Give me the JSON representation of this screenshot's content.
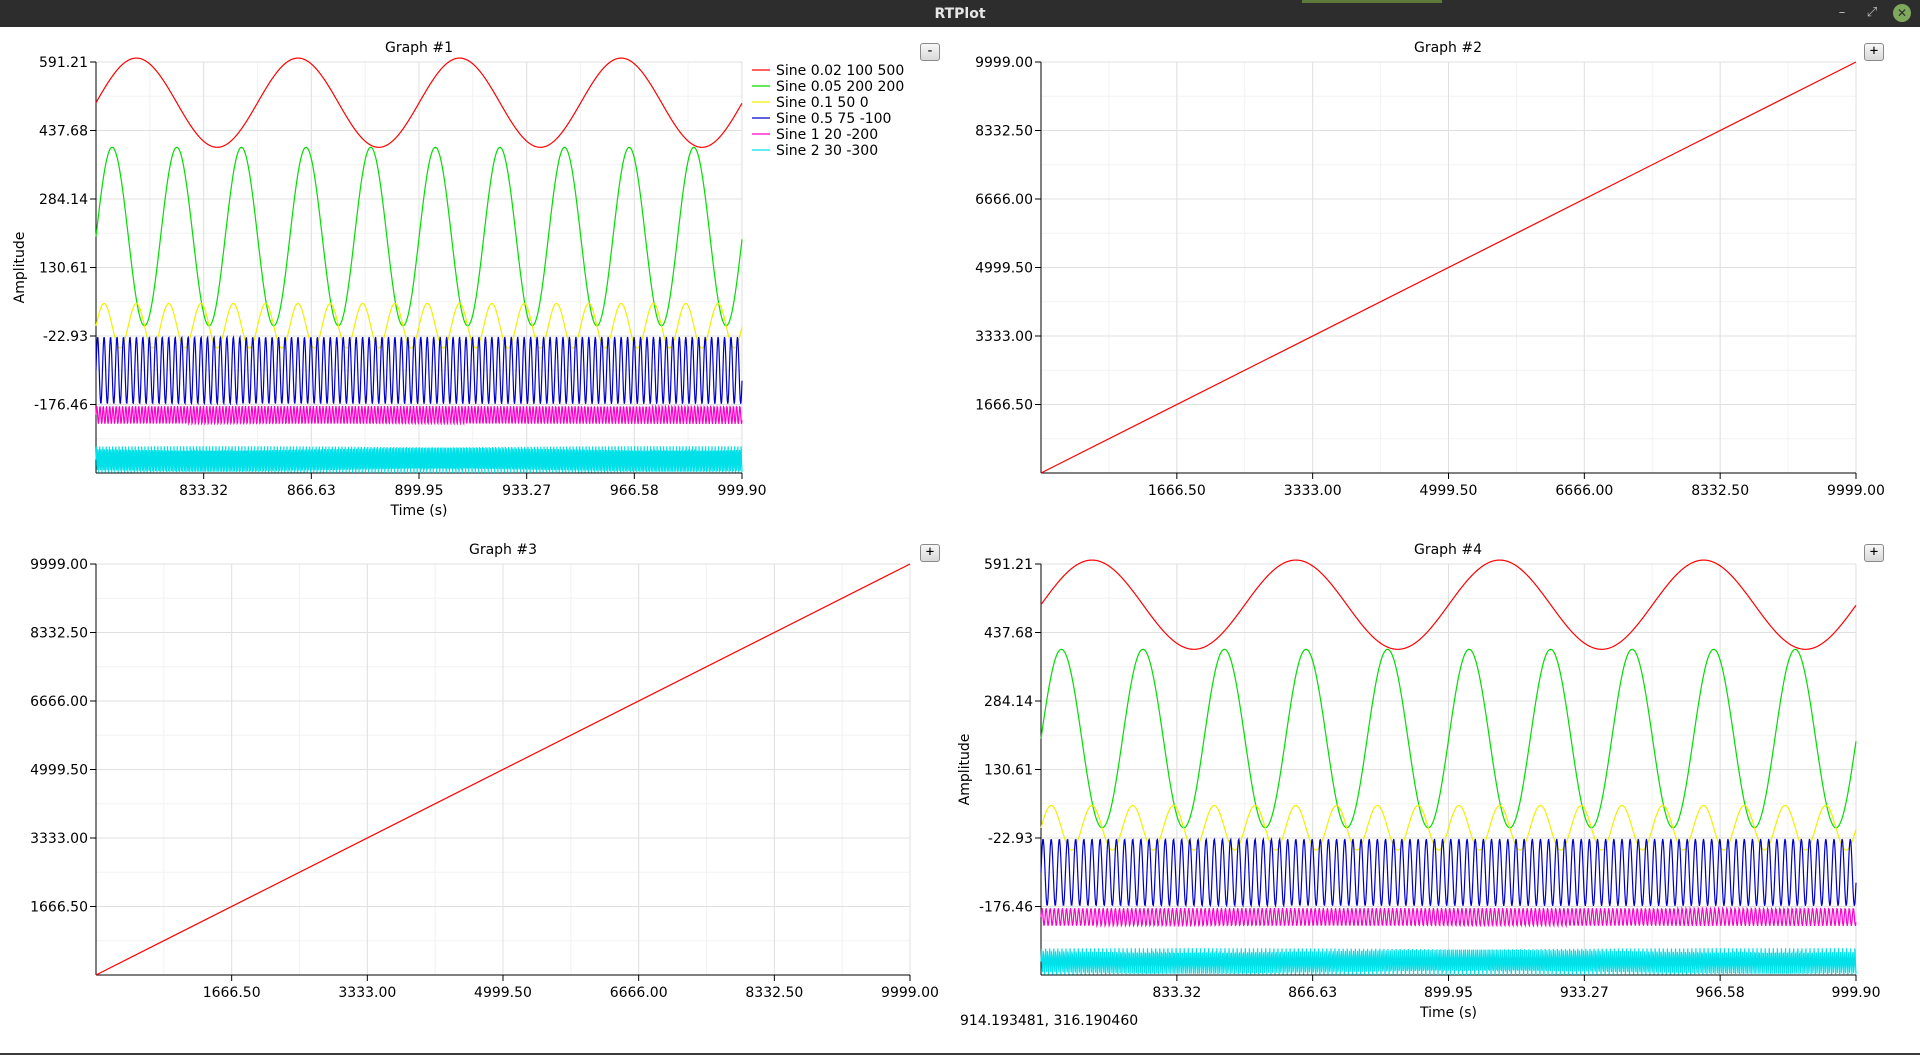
{
  "window": {
    "title": "RTPlot",
    "minimize_glyph": "–",
    "maximize_glyph": "⤢",
    "close_glyph": "✕"
  },
  "status": {
    "coords": "914.193481, 316.190460"
  },
  "colors": {
    "red": "#ff0000",
    "green": "#00dd00",
    "yellow": "#f0f000",
    "blue": "#0000cc",
    "magenta": "#ff00cc",
    "cyan": "#00e0e8"
  },
  "graphs": [
    {
      "title": "Graph #1",
      "toggle": "-",
      "xlabel": "Time (s)",
      "ylabel": "Amplitude"
    },
    {
      "title": "Graph #2",
      "toggle": "+",
      "xlabel": "",
      "ylabel": ""
    },
    {
      "title": "Graph #3",
      "toggle": "+",
      "xlabel": "",
      "ylabel": ""
    },
    {
      "title": "Graph #4",
      "toggle": "+",
      "xlabel": "Time (s)",
      "ylabel": "Amplitude"
    }
  ],
  "chart_data": [
    {
      "type": "line",
      "title": "Graph #1",
      "xlabel": "Time (s)",
      "ylabel": "Amplitude",
      "xlim": [
        800.0,
        999.9
      ],
      "ylim": [
        -329.99,
        591.21
      ],
      "xticks": [
        "833.32",
        "866.63",
        "899.95",
        "933.27",
        "966.58",
        "999.90"
      ],
      "yticks": [
        "591.21",
        "437.68",
        "284.14",
        "130.61",
        "-22.93",
        "-176.46"
      ],
      "grid": true,
      "legend_position": "top-right",
      "series": [
        {
          "name": "Sine 0.02 100 500",
          "color": "red",
          "frequency": 0.02,
          "amplitude": 100,
          "offset": 500
        },
        {
          "name": "Sine 0.05 200 200",
          "color": "green",
          "frequency": 0.05,
          "amplitude": 200,
          "offset": 200
        },
        {
          "name": "Sine 0.1 50 0",
          "color": "yellow",
          "frequency": 0.1,
          "amplitude": 50,
          "offset": 0
        },
        {
          "name": "Sine 0.5 75 -100",
          "color": "blue",
          "frequency": 0.5,
          "amplitude": 75,
          "offset": -100
        },
        {
          "name": "Sine 1 20 -200",
          "color": "magenta",
          "frequency": 1,
          "amplitude": 20,
          "offset": -200
        },
        {
          "name": "Sine 2 30 -300",
          "color": "cyan",
          "frequency": 2,
          "amplitude": 30,
          "offset": -300
        }
      ]
    },
    {
      "type": "line",
      "title": "Graph #2",
      "xlim": [
        0,
        9999.0
      ],
      "ylim": [
        0,
        9999.0
      ],
      "xticks": [
        "1666.50",
        "3333.00",
        "4999.50",
        "6666.00",
        "8332.50",
        "9999.00"
      ],
      "yticks": [
        "9999.00",
        "8332.50",
        "6666.00",
        "4999.50",
        "3333.00",
        "1666.50"
      ],
      "grid": true,
      "series": [
        {
          "color": "red",
          "x": [
            0,
            9999.0
          ],
          "y": [
            0,
            9999.0
          ]
        }
      ]
    },
    {
      "type": "line",
      "title": "Graph #3",
      "xlim": [
        0,
        9999.0
      ],
      "ylim": [
        0,
        9999.0
      ],
      "xticks": [
        "1666.50",
        "3333.00",
        "4999.50",
        "6666.00",
        "8332.50",
        "9999.00"
      ],
      "yticks": [
        "9999.00",
        "8332.50",
        "6666.00",
        "4999.50",
        "3333.00",
        "1666.50"
      ],
      "grid": true,
      "series": [
        {
          "color": "red",
          "x": [
            0,
            9999.0
          ],
          "y": [
            0,
            9999.0
          ]
        }
      ]
    },
    {
      "type": "line",
      "title": "Graph #4",
      "xlabel": "Time (s)",
      "ylabel": "Amplitude",
      "xlim": [
        800.0,
        999.9
      ],
      "ylim": [
        -329.99,
        591.21
      ],
      "xticks": [
        "833.32",
        "866.63",
        "899.95",
        "933.27",
        "966.58",
        "999.90"
      ],
      "yticks": [
        "591.21",
        "437.68",
        "284.14",
        "130.61",
        "-22.93",
        "-176.46"
      ],
      "grid": true,
      "series": [
        {
          "color": "red",
          "frequency": 0.02,
          "amplitude": 100,
          "offset": 500
        },
        {
          "color": "green",
          "frequency": 0.05,
          "amplitude": 200,
          "offset": 200
        },
        {
          "color": "yellow",
          "frequency": 0.1,
          "amplitude": 50,
          "offset": 0
        },
        {
          "color": "blue",
          "frequency": 0.5,
          "amplitude": 75,
          "offset": -100
        },
        {
          "color": "magenta",
          "frequency": 1,
          "amplitude": 20,
          "offset": -200
        },
        {
          "color": "cyan",
          "frequency": 2,
          "amplitude": 30,
          "offset": -300
        }
      ]
    }
  ]
}
